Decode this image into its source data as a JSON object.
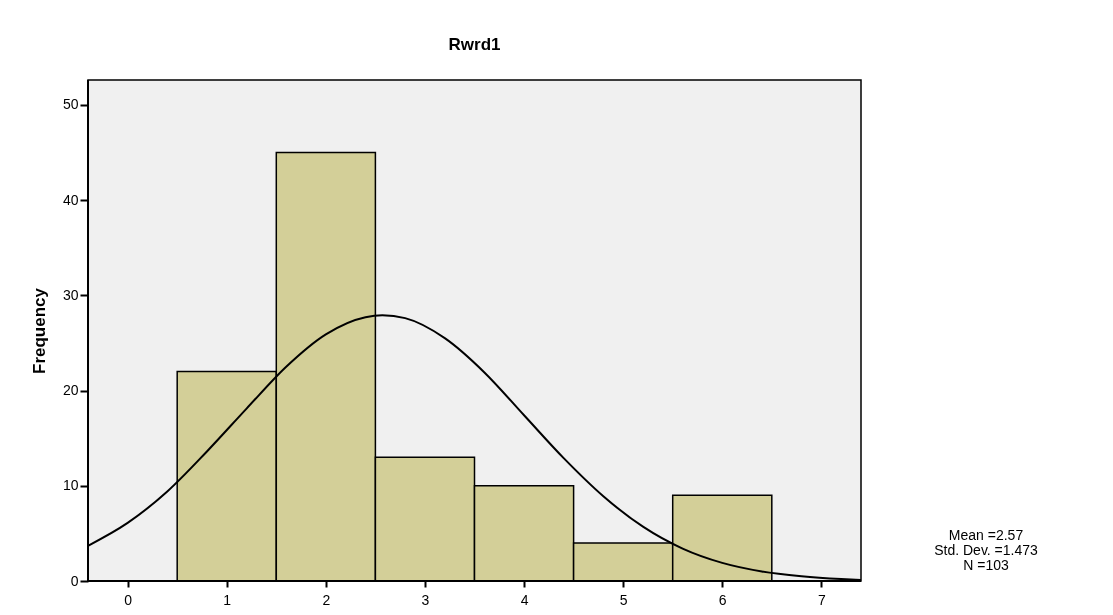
{
  "chart_data": {
    "type": "histogram",
    "title": "Rwrd1",
    "ylabel": "Frequency",
    "bins": [
      0.5,
      1.5,
      2.5,
      3.5,
      4.5,
      5.5,
      6.5
    ],
    "values": [
      22,
      45,
      13,
      10,
      4,
      9
    ],
    "color": "#d3cf98",
    "series": [
      {
        "type": "line",
        "color": "#000000",
        "x": [
          -0.4,
          0,
          0.4,
          0.8,
          1.2,
          1.6,
          2.0,
          2.4,
          2.57,
          2.8,
          3.2,
          3.6,
          4.0,
          4.4,
          4.8,
          5.2,
          5.6,
          6.0,
          6.4,
          6.8,
          7.2,
          7.4
        ],
        "values": [
          3.7,
          6.1,
          9.4,
          13.6,
          18.1,
          22.5,
          25.9,
          27.7,
          27.9,
          27.6,
          25.5,
          21.9,
          17.4,
          12.9,
          8.9,
          5.7,
          3.4,
          1.9,
          1.0,
          0.5,
          0.2,
          0.1
        ]
      }
    ],
    "xlim": [
      -0.4,
      7.4
    ],
    "xticks": [
      0,
      1,
      2,
      3,
      4,
      5,
      6,
      7
    ],
    "ylim": [
      0,
      52.6
    ],
    "yticks": [
      0,
      10,
      20,
      30,
      40,
      50
    ],
    "grid": false,
    "annotations": [
      "Mean =2.57",
      "Std. Dev. =1.473",
      "N =103"
    ]
  }
}
